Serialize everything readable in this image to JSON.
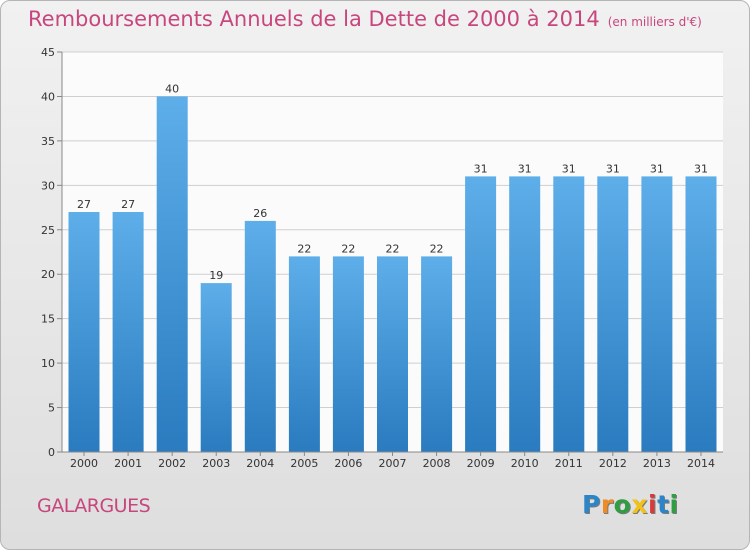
{
  "header": {
    "title": "Remboursements Annuels de la Dette de 2000 à 2014",
    "unit": "(en milliers d'€)"
  },
  "footer": {
    "commune": "GALARGUES",
    "logo_letters": [
      "P",
      "r",
      "o",
      "x",
      "i",
      "t",
      "i"
    ]
  },
  "colors": {
    "title": "#c8467e",
    "bar_top": "#5daee9",
    "bar_bottom": "#2a7bbf",
    "logo_letters": [
      "#2b86c9",
      "#f08a24",
      "#2f9e43",
      "#f0c21a",
      "#d63a3a",
      "#2b86c9",
      "#2f9e43"
    ]
  },
  "chart_data": {
    "type": "bar",
    "title": "Remboursements Annuels de la Dette de 2000 à 2014",
    "subtitle": "(en milliers d'€)",
    "xlabel": "",
    "ylabel": "",
    "categories": [
      "2000",
      "2001",
      "2002",
      "2003",
      "2004",
      "2005",
      "2006",
      "2007",
      "2008",
      "2009",
      "2010",
      "2011",
      "2012",
      "2013",
      "2014"
    ],
    "values": [
      27,
      27,
      40,
      19,
      26,
      22,
      22,
      22,
      22,
      31,
      31,
      31,
      31,
      31,
      31
    ],
    "ylim": [
      0,
      45
    ],
    "yticks": [
      0,
      5,
      10,
      15,
      20,
      25,
      30,
      35,
      40,
      45
    ],
    "grid": "horizontal",
    "legend": "none"
  }
}
